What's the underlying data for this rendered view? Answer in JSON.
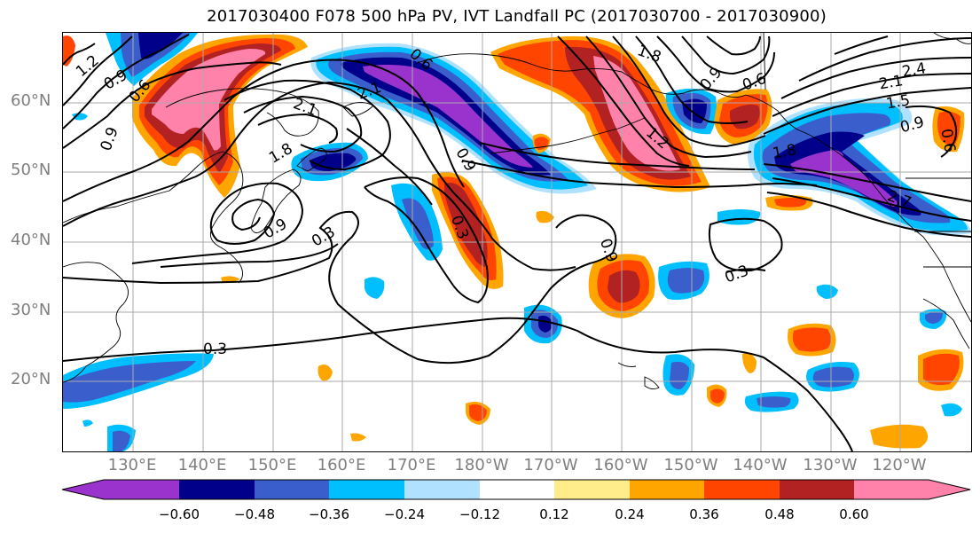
{
  "title": "2017030400 F078 500 hPa PV, IVT Landfall PC (2017030700 - 2017030900)",
  "lat_labels": [
    "60°N",
    "50°N",
    "40°N",
    "30°N",
    "20°N"
  ],
  "lon_labels": [
    "130°E",
    "140°E",
    "150°E",
    "160°E",
    "170°E",
    "180°W",
    "170°W",
    "160°W",
    "150°W",
    "140°W",
    "130°W",
    "120°W"
  ],
  "contour_labels": [
    "1.2",
    "0.9",
    "0.6",
    "0.9",
    "0.6",
    "2.1",
    "1.8",
    "2.1",
    "0.9",
    "0.3",
    "0.9",
    "0.3",
    "0.9",
    "0.3",
    "1.8",
    "1.2",
    "0.9",
    "0.6",
    "2.1",
    "2.4",
    "1.5",
    "0.9",
    "0.6",
    "1.8",
    "2.7",
    "0.3"
  ],
  "colorbar": {
    "ticks": [
      "−0.60",
      "−0.48",
      "−0.36",
      "−0.24",
      "−0.12",
      "0.12",
      "0.24",
      "0.36",
      "0.48",
      "0.60"
    ],
    "colors": [
      "#9a32cd",
      "#00008b",
      "#3a5fcd",
      "#00bfff",
      "#b0e2ff",
      "#ffffff",
      "#ffec8b",
      "#ffa500",
      "#ff4500",
      "#b22222",
      "#ff82ab"
    ]
  }
}
